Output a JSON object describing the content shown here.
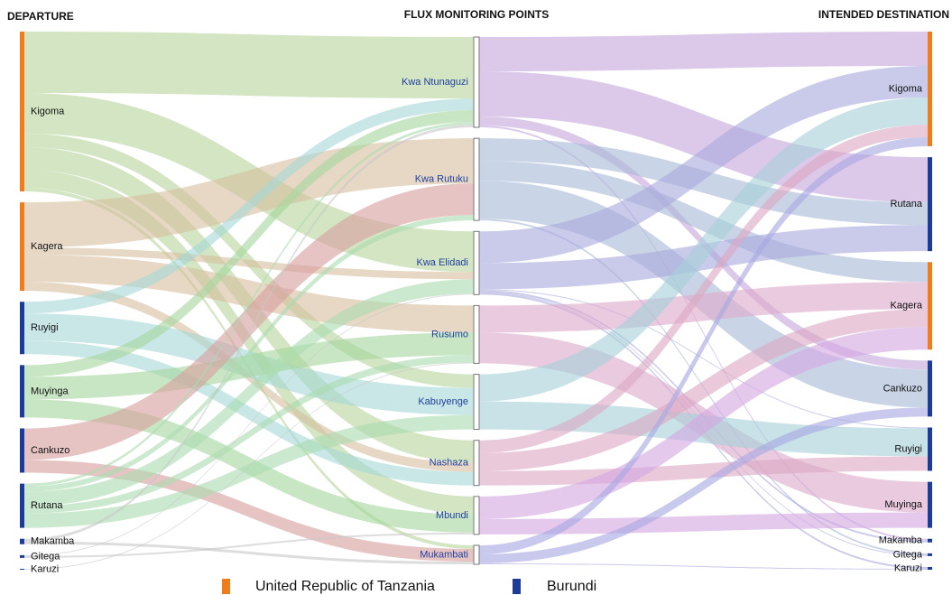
{
  "chart_data": {
    "type": "sankey",
    "column_titles": [
      "DEPARTURE",
      "FLUX MONITORING POINTS",
      "INTENDED DESTINATION"
    ],
    "legend": [
      {
        "name": "United Republic of Tanzania",
        "color": "#f07c1a"
      },
      {
        "name": "Burundi",
        "color": "#1c3c9c"
      }
    ],
    "point_color": "#ffffff",
    "columns": [
      [
        {
          "name": "Kigoma",
          "group": 0,
          "flow_color": "#b8d59c"
        },
        {
          "name": "Kagera",
          "group": 0,
          "flow_color": "#d7c0a0"
        },
        {
          "name": "Ruyigi",
          "group": 1,
          "flow_color": "#a6d8d6"
        },
        {
          "name": "Muyinga",
          "group": 1,
          "flow_color": "#a6d79e"
        },
        {
          "name": "Cankuzo",
          "group": 1,
          "flow_color": "#d9a0a0"
        },
        {
          "name": "Rutana",
          "group": 1,
          "flow_color": "#abdcb0"
        },
        {
          "name": "Makamba",
          "group": 1,
          "flow_color": "#c8c8c8"
        },
        {
          "name": "Gitega",
          "group": 1,
          "flow_color": "#c8c8c8"
        },
        {
          "name": "Karuzi",
          "group": 1,
          "flow_color": "#c8c8c8"
        }
      ],
      [
        {
          "name": "Kwa Ntunaguzi",
          "flow_color": "#c7a8dd"
        },
        {
          "name": "Kwa Rutuku",
          "flow_color": "#a9b9d9"
        },
        {
          "name": "Kwa Elidadi",
          "flow_color": "#a9a9dd"
        },
        {
          "name": "Rusumo",
          "flow_color": "#dda9cc"
        },
        {
          "name": "Kabuyenge",
          "flow_color": "#a6d0d8"
        },
        {
          "name": "Nashaza",
          "flow_color": "#dca8c4"
        },
        {
          "name": "Mbundi",
          "flow_color": "#d3a8e2"
        },
        {
          "name": "Mukambati",
          "flow_color": "#a8a8e2"
        }
      ],
      [
        {
          "name": "Kigoma",
          "group": 0
        },
        {
          "name": "Rutana",
          "group": 1
        },
        {
          "name": "Kagera",
          "group": 0
        },
        {
          "name": "Cankuzo",
          "group": 1
        },
        {
          "name": "Ruyigi",
          "group": 1
        },
        {
          "name": "Muyinga",
          "group": 1
        },
        {
          "name": "Makamba",
          "group": 1
        },
        {
          "name": "Gitega",
          "group": 1
        },
        {
          "name": "Karuzi",
          "group": 1
        }
      ]
    ],
    "links": [
      [
        {
          "source": 0,
          "target": 0,
          "value": 68
        },
        {
          "source": 0,
          "target": 2,
          "value": 45
        },
        {
          "source": 0,
          "target": 4,
          "value": 15
        },
        {
          "source": 0,
          "target": 5,
          "value": 25
        },
        {
          "source": 0,
          "target": 6,
          "value": 20
        },
        {
          "source": 0,
          "target": 7,
          "value": 4
        },
        {
          "source": 1,
          "target": 1,
          "value": 50
        },
        {
          "source": 1,
          "target": 2,
          "value": 8
        },
        {
          "source": 1,
          "target": 3,
          "value": 30
        },
        {
          "source": 1,
          "target": 5,
          "value": 10
        },
        {
          "source": 2,
          "target": 0,
          "value": 13
        },
        {
          "source": 2,
          "target": 4,
          "value": 30
        },
        {
          "source": 2,
          "target": 5,
          "value": 15
        },
        {
          "source": 3,
          "target": 0,
          "value": 13
        },
        {
          "source": 3,
          "target": 3,
          "value": 25
        },
        {
          "source": 3,
          "target": 6,
          "value": 20
        },
        {
          "source": 4,
          "target": 1,
          "value": 35
        },
        {
          "source": 4,
          "target": 7,
          "value": 14
        },
        {
          "source": 5,
          "target": 0,
          "value": 3
        },
        {
          "source": 5,
          "target": 1,
          "value": 6
        },
        {
          "source": 5,
          "target": 2,
          "value": 16
        },
        {
          "source": 5,
          "target": 3,
          "value": 8
        },
        {
          "source": 5,
          "target": 4,
          "value": 16
        },
        {
          "source": 6,
          "target": 0,
          "value": 3
        },
        {
          "source": 6,
          "target": 7,
          "value": 3
        },
        {
          "source": 7,
          "target": 2,
          "value": 1
        },
        {
          "source": 7,
          "target": 6,
          "value": 2
        },
        {
          "source": 8,
          "target": 3,
          "value": 1
        }
      ],
      [
        {
          "source": 0,
          "target": 0,
          "value": 38
        },
        {
          "source": 0,
          "target": 1,
          "value": 50
        },
        {
          "source": 0,
          "target": 3,
          "value": 10
        },
        {
          "source": 0,
          "target": 6,
          "value": 2
        },
        {
          "source": 1,
          "target": 1,
          "value": 25
        },
        {
          "source": 1,
          "target": 2,
          "value": 22
        },
        {
          "source": 1,
          "target": 3,
          "value": 42
        },
        {
          "source": 1,
          "target": 7,
          "value": 2
        },
        {
          "source": 2,
          "target": 0,
          "value": 35
        },
        {
          "source": 2,
          "target": 1,
          "value": 29
        },
        {
          "source": 2,
          "target": 4,
          "value": 1
        },
        {
          "source": 2,
          "target": 6,
          "value": 2
        },
        {
          "source": 2,
          "target": 7,
          "value": 1
        },
        {
          "source": 2,
          "target": 8,
          "value": 2
        },
        {
          "source": 3,
          "target": 2,
          "value": 30
        },
        {
          "source": 3,
          "target": 5,
          "value": 34
        },
        {
          "source": 4,
          "target": 0,
          "value": 30
        },
        {
          "source": 4,
          "target": 4,
          "value": 31
        },
        {
          "source": 5,
          "target": 0,
          "value": 14
        },
        {
          "source": 5,
          "target": 2,
          "value": 20
        },
        {
          "source": 5,
          "target": 4,
          "value": 16
        },
        {
          "source": 6,
          "target": 2,
          "value": 25
        },
        {
          "source": 6,
          "target": 5,
          "value": 17
        },
        {
          "source": 7,
          "target": 0,
          "value": 10
        },
        {
          "source": 7,
          "target": 3,
          "value": 10
        },
        {
          "source": 7,
          "target": 8,
          "value": 1
        }
      ]
    ]
  }
}
